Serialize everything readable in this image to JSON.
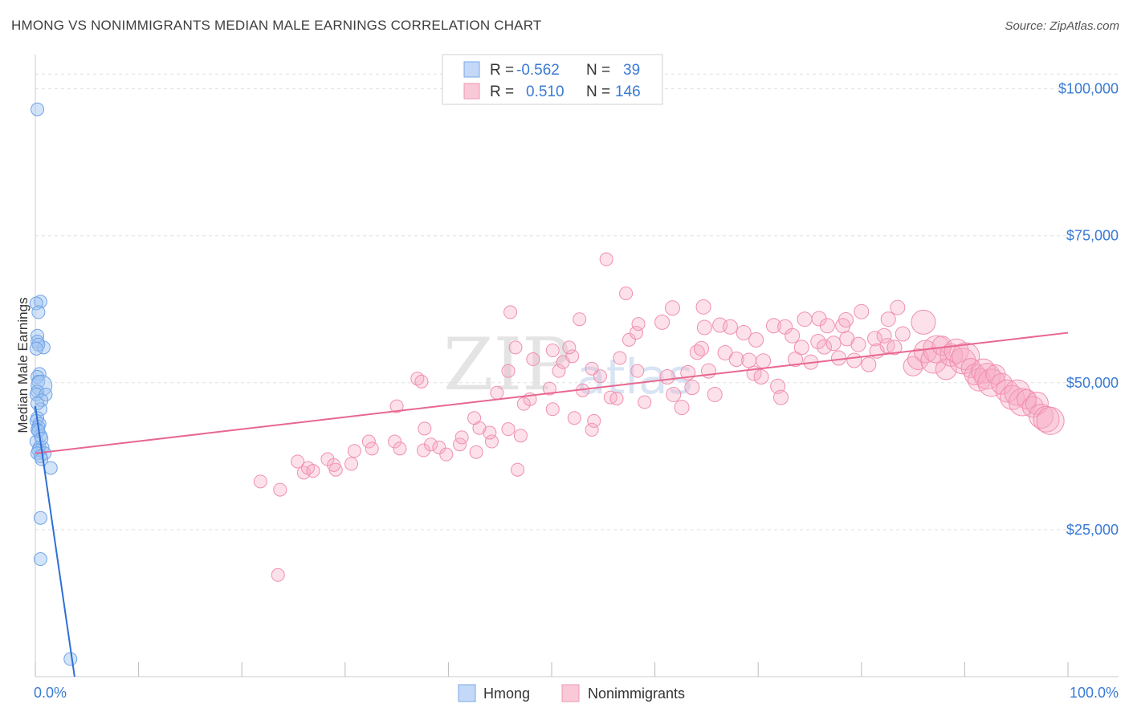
{
  "header": {
    "title": "HMONG VS NONIMMIGRANTS MEDIAN MALE EARNINGS CORRELATION CHART",
    "source": "Source: ZipAtlas.com"
  },
  "watermark": {
    "zip": "ZIP",
    "atlas": "atlas"
  },
  "legend_top": {
    "rows": [
      {
        "r_label": "R =",
        "r_value": "-0.562",
        "n_label": "N =",
        "n_value": "39",
        "color": "#a9c8f3"
      },
      {
        "r_label": "R =",
        "r_value": "0.510",
        "n_label": "N =",
        "n_value": "146",
        "color": "#f7b7cb"
      }
    ]
  },
  "legend_bottom": [
    {
      "label": "Hmong",
      "color": "#a9c8f3"
    },
    {
      "label": "Nonimmigrants",
      "color": "#f7b7cb"
    }
  ],
  "chart_data": {
    "type": "scatter",
    "title": "HMONG VS NONIMMIGRANTS MEDIAN MALE EARNINGS CORRELATION CHART",
    "xlabel": "",
    "ylabel": "Median Male Earnings",
    "xlim": [
      0,
      100
    ],
    "ylim": [
      0,
      105000
    ],
    "x_tick_labels": [
      "0.0%",
      "100.0%"
    ],
    "y_ticks": [
      25000,
      50000,
      75000,
      100000
    ],
    "y_tick_labels": [
      "$25,000",
      "$50,000",
      "$75,000",
      "$100,000"
    ],
    "grid": true,
    "legend_position": "top-center",
    "series": [
      {
        "name": "Hmong",
        "color": "#6fa3e8",
        "trend": {
          "x0": 0.0,
          "y0": 46000,
          "x1": 3.8,
          "y1": 0
        },
        "points": [
          [
            0.2,
            96500
          ],
          [
            0.5,
            63800
          ],
          [
            0.1,
            63500
          ],
          [
            0.3,
            62000
          ],
          [
            0.2,
            58000
          ],
          [
            0.8,
            56000
          ],
          [
            0.2,
            57000
          ],
          [
            0.3,
            56500
          ],
          [
            0.1,
            55800
          ],
          [
            0.4,
            51500
          ],
          [
            0.2,
            51000
          ],
          [
            0.3,
            50200
          ],
          [
            0.6,
            49500
          ],
          [
            0.2,
            48500
          ],
          [
            0.1,
            48000
          ],
          [
            1.0,
            48000
          ],
          [
            0.6,
            47000
          ],
          [
            0.5,
            45500
          ],
          [
            0.2,
            44000
          ],
          [
            0.1,
            43500
          ],
          [
            0.4,
            43000
          ],
          [
            0.3,
            42500
          ],
          [
            0.2,
            42000
          ],
          [
            0.5,
            41000
          ],
          [
            0.1,
            40000
          ],
          [
            0.4,
            39000
          ],
          [
            0.7,
            39000
          ],
          [
            0.3,
            38500
          ],
          [
            0.9,
            38000
          ],
          [
            0.2,
            38000
          ],
          [
            0.5,
            37500
          ],
          [
            0.6,
            37000
          ],
          [
            1.5,
            35500
          ],
          [
            0.5,
            27000
          ],
          [
            0.5,
            20000
          ],
          [
            3.4,
            3000
          ],
          [
            0.3,
            41800
          ],
          [
            0.6,
            40500
          ],
          [
            0.2,
            46500
          ]
        ]
      },
      {
        "name": "Nonimmigrants",
        "color": "#f08fae",
        "trend": {
          "x0": 0.0,
          "y0": 38000,
          "x1": 100.0,
          "y1": 58500
        },
        "points": [
          [
            21.8,
            33200
          ],
          [
            23.7,
            31800
          ],
          [
            23.5,
            17300
          ],
          [
            25.4,
            36600
          ],
          [
            26.0,
            34700
          ],
          [
            26.4,
            35500
          ],
          [
            26.9,
            35000
          ],
          [
            28.3,
            37000
          ],
          [
            29.1,
            35200
          ],
          [
            28.9,
            36000
          ],
          [
            30.6,
            36200
          ],
          [
            30.9,
            38400
          ],
          [
            32.3,
            40000
          ],
          [
            32.6,
            38800
          ],
          [
            34.8,
            40000
          ],
          [
            35.3,
            38800
          ],
          [
            35.0,
            46000
          ],
          [
            37.6,
            38500
          ],
          [
            37.7,
            42200
          ],
          [
            38.3,
            39500
          ],
          [
            39.1,
            39000
          ],
          [
            39.8,
            37800
          ],
          [
            41.1,
            39500
          ],
          [
            41.3,
            40700
          ],
          [
            43.0,
            42300
          ],
          [
            42.7,
            38200
          ],
          [
            42.5,
            44000
          ],
          [
            44.2,
            40000
          ],
          [
            45.8,
            42100
          ],
          [
            44.0,
            41500
          ],
          [
            47.0,
            41000
          ],
          [
            46.7,
            35200
          ],
          [
            47.3,
            46400
          ],
          [
            47.9,
            47200
          ],
          [
            37.0,
            50700
          ],
          [
            37.4,
            50200
          ],
          [
            44.7,
            48300
          ],
          [
            45.8,
            52000
          ],
          [
            46.5,
            56000
          ],
          [
            48.2,
            54000
          ],
          [
            49.8,
            49000
          ],
          [
            50.1,
            55500
          ],
          [
            50.7,
            52000
          ],
          [
            51.1,
            53500
          ],
          [
            52.0,
            54500
          ],
          [
            51.7,
            56000
          ],
          [
            50.1,
            45500
          ],
          [
            52.2,
            44000
          ],
          [
            53.0,
            48700
          ],
          [
            53.9,
            42000
          ],
          [
            54.1,
            43500
          ],
          [
            53.9,
            52400
          ],
          [
            54.7,
            51100
          ],
          [
            55.7,
            47500
          ],
          [
            56.3,
            47300
          ],
          [
            56.6,
            54200
          ],
          [
            57.5,
            57300
          ],
          [
            58.2,
            58500
          ],
          [
            58.4,
            60000
          ],
          [
            58.3,
            52000
          ],
          [
            59.0,
            46700
          ],
          [
            60.7,
            60300
          ],
          [
            61.8,
            48000
          ],
          [
            61.7,
            62700
          ],
          [
            61.2,
            51000
          ],
          [
            62.6,
            45800
          ],
          [
            63.6,
            49200
          ],
          [
            63.2,
            51700
          ],
          [
            64.1,
            55200
          ],
          [
            64.8,
            59400
          ],
          [
            64.5,
            55800
          ],
          [
            65.2,
            52000
          ],
          [
            64.7,
            62900
          ],
          [
            65.8,
            48000
          ],
          [
            66.3,
            59800
          ],
          [
            66.8,
            55100
          ],
          [
            67.3,
            59500
          ],
          [
            67.9,
            54000
          ],
          [
            68.6,
            58500
          ],
          [
            69.1,
            53800
          ],
          [
            69.6,
            51600
          ],
          [
            69.8,
            57300
          ],
          [
            70.3,
            51000
          ],
          [
            70.5,
            53700
          ],
          [
            71.5,
            59700
          ],
          [
            71.9,
            49400
          ],
          [
            72.2,
            47500
          ],
          [
            72.6,
            59500
          ],
          [
            73.3,
            58000
          ],
          [
            73.6,
            54000
          ],
          [
            74.2,
            56000
          ],
          [
            74.5,
            60800
          ],
          [
            75.1,
            53500
          ],
          [
            75.8,
            57000
          ],
          [
            75.9,
            60900
          ],
          [
            76.4,
            56100
          ],
          [
            76.7,
            59700
          ],
          [
            77.8,
            54200
          ],
          [
            77.3,
            56700
          ],
          [
            78.2,
            59700
          ],
          [
            78.6,
            57500
          ],
          [
            78.5,
            60700
          ],
          [
            79.3,
            53800
          ],
          [
            79.7,
            56500
          ],
          [
            80.0,
            62100
          ],
          [
            80.7,
            53100
          ],
          [
            81.3,
            57500
          ],
          [
            81.5,
            55400
          ],
          [
            82.5,
            56300
          ],
          [
            82.2,
            58000
          ],
          [
            82.6,
            60800
          ],
          [
            83.2,
            56000
          ],
          [
            83.5,
            62800
          ],
          [
            84.0,
            58300
          ],
          [
            85.0,
            52800
          ],
          [
            85.5,
            54000
          ],
          [
            86.2,
            55300
          ],
          [
            86.0,
            60300
          ],
          [
            87.0,
            53800
          ],
          [
            87.3,
            55700
          ],
          [
            87.8,
            56300
          ],
          [
            88.2,
            52300
          ],
          [
            88.7,
            54700
          ],
          [
            89.2,
            55400
          ],
          [
            89.8,
            53700
          ],
          [
            90.1,
            54500
          ],
          [
            90.6,
            52500
          ],
          [
            91.0,
            51400
          ],
          [
            91.4,
            50500
          ],
          [
            91.8,
            52000
          ],
          [
            92.2,
            51100
          ],
          [
            92.6,
            50000
          ],
          [
            93.0,
            51400
          ],
          [
            93.6,
            49800
          ],
          [
            94.1,
            48600
          ],
          [
            94.6,
            47500
          ],
          [
            95.1,
            48300
          ],
          [
            95.6,
            46700
          ],
          [
            96.0,
            47200
          ],
          [
            96.6,
            45900
          ],
          [
            97.0,
            46500
          ],
          [
            97.4,
            44300
          ],
          [
            97.9,
            43800
          ],
          [
            98.3,
            43500
          ],
          [
            46.0,
            62000
          ],
          [
            55.3,
            71000
          ],
          [
            57.2,
            65200
          ],
          [
            52.7,
            60800
          ]
        ]
      }
    ]
  }
}
